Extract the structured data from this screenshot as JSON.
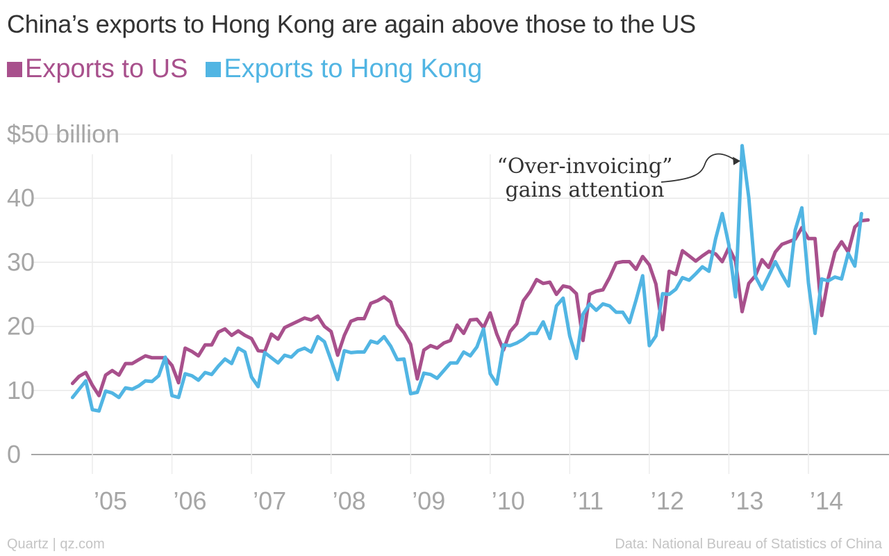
{
  "title": "China’s exports to Hong Kong are again above those to the US",
  "legend": [
    {
      "label": "Exports to US",
      "color": "#a8508c"
    },
    {
      "label": "Exports to Hong Kong",
      "color": "#51b5e3"
    }
  ],
  "footer": {
    "source_left": "Quartz | qz.com",
    "source_right": "Data: National Bureau of Statistics of China"
  },
  "chart_data": {
    "type": "line",
    "title": "China’s exports to Hong Kong are again above those to the US",
    "ylabel": "",
    "xlabel": "",
    "ylim": [
      0,
      50
    ],
    "x_range": [
      2004.583,
      2014.833
    ],
    "y_ticks": [
      {
        "value": 50,
        "label": "$50 billion"
      },
      {
        "value": 40,
        "label": "40"
      },
      {
        "value": 30,
        "label": "30"
      },
      {
        "value": 20,
        "label": "20"
      },
      {
        "value": 10,
        "label": "10"
      },
      {
        "value": 0,
        "label": "0"
      }
    ],
    "x_ticks": [
      {
        "value": 2005,
        "label": "’05"
      },
      {
        "value": 2006,
        "label": "’06"
      },
      {
        "value": 2007,
        "label": "’07"
      },
      {
        "value": 2008,
        "label": "’08"
      },
      {
        "value": 2009,
        "label": "’09"
      },
      {
        "value": 2010,
        "label": "’10"
      },
      {
        "value": 2011,
        "label": "’11"
      },
      {
        "value": 2012,
        "label": "’12"
      },
      {
        "value": 2013,
        "label": "’13"
      },
      {
        "value": 2014,
        "label": "’14"
      }
    ],
    "x_start": "2004-10",
    "frequency": "monthly",
    "grid": true,
    "legend_position": "top-left",
    "annotation": {
      "lines": [
        "“Over-invoicing”",
        "gains attention"
      ],
      "x": 2013.25,
      "y": 48.2
    },
    "series": [
      {
        "name": "Exports to US",
        "color": "#a8508c",
        "values": [
          11.1,
          12.2,
          12.8,
          10.8,
          9.2,
          12.4,
          13.1,
          12.4,
          14.2,
          14.2,
          14.8,
          15.4,
          15.1,
          15.1,
          15.1,
          13.9,
          11.2,
          16.6,
          16.1,
          15.4,
          17.1,
          17.1,
          19.1,
          19.6,
          18.6,
          19.3,
          18.6,
          18.1,
          16.2,
          16.1,
          18.8,
          18.0,
          19.8,
          20.3,
          20.8,
          21.3,
          21.0,
          21.6,
          20.0,
          19.2,
          15.5,
          18.6,
          20.8,
          21.2,
          21.2,
          23.6,
          24.0,
          24.6,
          23.8,
          20.3,
          19.0,
          17.2,
          11.8,
          16.3,
          17.0,
          16.6,
          17.4,
          17.8,
          20.2,
          18.9,
          21.0,
          21.1,
          19.8,
          22.1,
          18.8,
          16.3,
          19.2,
          20.4,
          24.0,
          25.4,
          27.3,
          26.7,
          26.9,
          25.0,
          26.3,
          26.1,
          25.1,
          17.8,
          25.0,
          25.5,
          25.7,
          27.6,
          29.9,
          30.1,
          30.1,
          28.9,
          30.9,
          29.6,
          26.6,
          19.5,
          28.6,
          28.1,
          31.8,
          31.0,
          30.2,
          31.0,
          31.7,
          31.3,
          30.1,
          32.3,
          30.2,
          22.3,
          26.7,
          27.9,
          30.4,
          29.2,
          31.6,
          32.8,
          33.2,
          33.6,
          35.4,
          33.7,
          33.7,
          21.7,
          27.5,
          31.6,
          33.2,
          31.6,
          35.5,
          36.5,
          36.6
        ]
      },
      {
        "name": "Exports to Hong Kong",
        "color": "#51b5e3",
        "values": [
          8.9,
          10.2,
          11.5,
          7.0,
          6.8,
          9.9,
          9.6,
          8.9,
          10.4,
          10.2,
          10.7,
          11.5,
          11.4,
          12.3,
          15.2,
          9.2,
          8.9,
          12.6,
          12.3,
          11.6,
          12.8,
          12.5,
          13.8,
          14.9,
          14.2,
          16.6,
          16.0,
          12.1,
          10.6,
          15.9,
          15.1,
          14.3,
          15.5,
          15.2,
          16.2,
          16.6,
          16.0,
          18.4,
          17.6,
          14.7,
          11.7,
          16.2,
          15.9,
          16.0,
          16.0,
          17.7,
          17.4,
          18.4,
          16.9,
          14.8,
          14.9,
          9.5,
          9.7,
          12.7,
          12.5,
          11.9,
          13.1,
          14.3,
          14.3,
          16.0,
          15.4,
          16.8,
          19.6,
          12.6,
          11.0,
          17.1,
          17.0,
          17.4,
          18.0,
          18.9,
          18.9,
          20.7,
          18.1,
          23.2,
          24.4,
          18.5,
          15.0,
          21.9,
          23.5,
          22.5,
          23.5,
          23.2,
          22.2,
          22.2,
          20.6,
          24.1,
          27.9,
          17.0,
          18.5,
          25.1,
          25.0,
          25.8,
          27.6,
          27.2,
          28.2,
          29.3,
          28.6,
          33.7,
          37.6,
          32.7,
          24.6,
          48.2,
          40.1,
          27.8,
          25.8,
          27.9,
          30.1,
          28.1,
          26.3,
          35.0,
          38.5,
          26.8,
          18.9,
          27.4,
          27.1,
          27.7,
          27.4,
          31.4,
          29.4,
          37.6
        ]
      }
    ]
  }
}
